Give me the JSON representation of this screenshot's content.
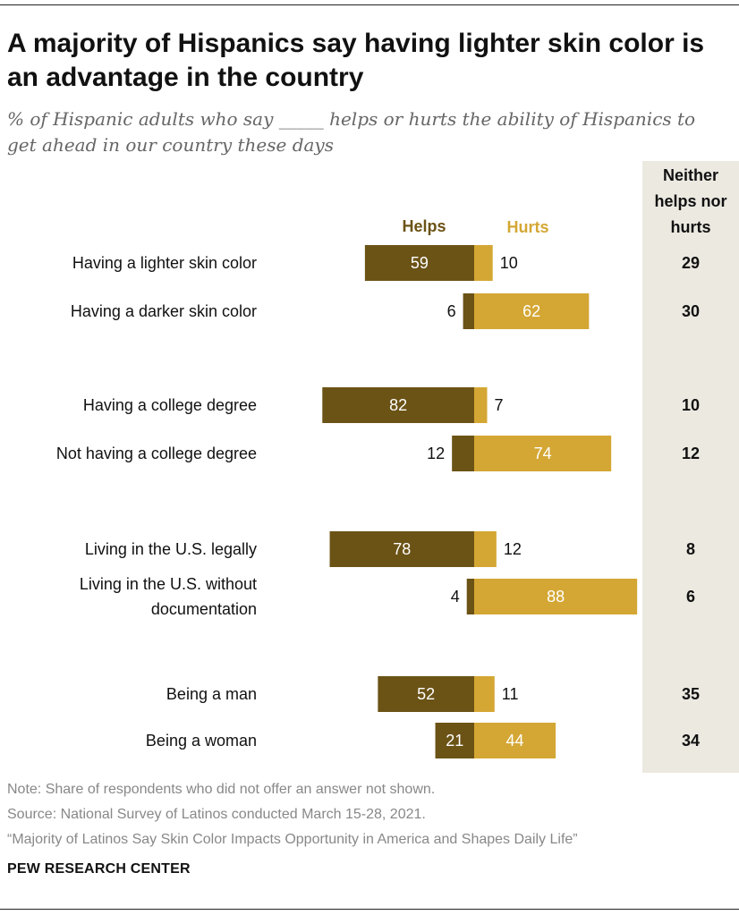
{
  "header": {
    "title": "A majority of Hispanics say having lighter skin color is an advantage in the country",
    "subtitle": "% of Hispanic adults who say _____ helps or hurts the ability of Hispanics to get ahead in our country these days"
  },
  "chart_data": {
    "type": "bar",
    "orientation": "horizontal-diverging",
    "categories": [
      [
        "Having a lighter skin color"
      ],
      [
        "Having a darker skin color"
      ],
      [
        "Having a college degree"
      ],
      [
        "Not having a college degree"
      ],
      [
        "Living in the U.S. legally"
      ],
      [
        "Living in the U.S. without",
        "documentation"
      ],
      [
        "Being a man"
      ],
      [
        "Being a woman"
      ]
    ],
    "series": [
      {
        "name": "Helps",
        "color": "#6b5316",
        "values": [
          59,
          6,
          82,
          12,
          78,
          4,
          52,
          21
        ]
      },
      {
        "name": "Hurts",
        "color": "#d4a734",
        "values": [
          10,
          62,
          7,
          74,
          12,
          88,
          11,
          44
        ]
      }
    ],
    "neither_column": {
      "header": [
        "Neither",
        "helps nor",
        "hurts"
      ],
      "values": [
        29,
        30,
        10,
        12,
        8,
        6,
        35,
        34
      ]
    }
  },
  "footer": {
    "note": "Note: Share of respondents who did not offer an answer not shown.",
    "source": "Source: National Survey of Latinos conducted March 15-28, 2021.",
    "report": "“Majority of Latinos Say Skin Color Impacts Opportunity in America and Shapes Daily Life”",
    "brand": "PEW RESEARCH CENTER"
  },
  "colors": {
    "helps": "#6b5316",
    "hurts": "#d4a734",
    "neither_bg": "#ece9e1",
    "note_text": "#888888"
  }
}
